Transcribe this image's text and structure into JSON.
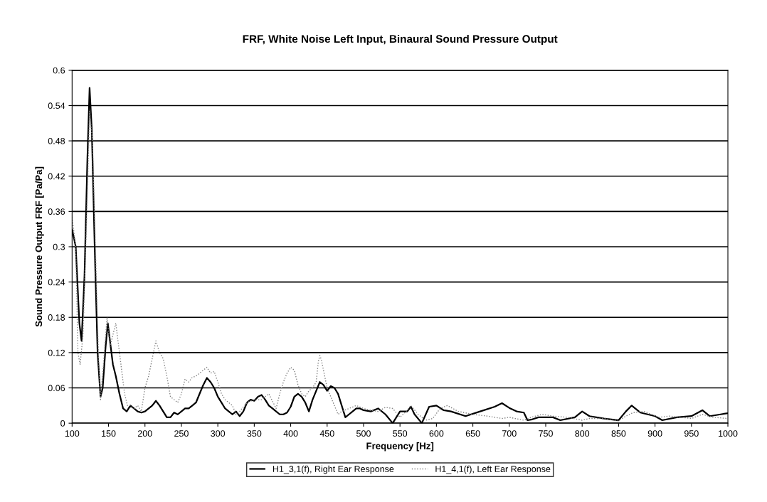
{
  "chart_data": {
    "type": "line",
    "title": "FRF, White Noise Left Input, Binaural Sound Pressure Output",
    "xlabel": "Frequency [Hz]",
    "ylabel": "Sound Pressure Output FRF [Pa/Pa]",
    "xlim": [
      100,
      1000
    ],
    "xticks": [
      100,
      150,
      200,
      250,
      300,
      350,
      400,
      450,
      500,
      550,
      600,
      650,
      700,
      750,
      800,
      850,
      900,
      950,
      1000
    ],
    "ylim": [
      0,
      0.6
    ],
    "yticks": [
      0,
      0.06,
      0.12,
      0.18,
      0.24,
      0.3,
      0.36,
      0.42,
      0.48,
      0.54,
      0.6
    ],
    "grid": "y",
    "legend": "bottom",
    "marker": "none",
    "series": [
      {
        "name": "H1_3,1(f), Right Ear Response",
        "color": "#000000",
        "line_style": "solid",
        "x": [
          100,
          105,
          110,
          113,
          117,
          121,
          124,
          127,
          131,
          135,
          139,
          142,
          146,
          149,
          152,
          156,
          160,
          165,
          170,
          175,
          180,
          185,
          190,
          195,
          200,
          210,
          215,
          220,
          225,
          230,
          235,
          240,
          245,
          250,
          255,
          260,
          265,
          270,
          275,
          280,
          285,
          290,
          295,
          300,
          305,
          310,
          315,
          320,
          325,
          330,
          335,
          340,
          345,
          350,
          355,
          360,
          365,
          370,
          375,
          380,
          385,
          390,
          395,
          400,
          405,
          410,
          415,
          420,
          425,
          430,
          435,
          440,
          445,
          450,
          455,
          460,
          465,
          470,
          475,
          480,
          485,
          490,
          495,
          500,
          510,
          520,
          530,
          540,
          550,
          560,
          565,
          570,
          580,
          590,
          600,
          610,
          620,
          640,
          660,
          680,
          690,
          700,
          710,
          720,
          725,
          730,
          740,
          760,
          770,
          790,
          800,
          810,
          830,
          850,
          860,
          868,
          880,
          900,
          910,
          930,
          950,
          965,
          975,
          990,
          1000
        ],
        "values": [
          0.33,
          0.3,
          0.17,
          0.14,
          0.25,
          0.45,
          0.57,
          0.5,
          0.3,
          0.12,
          0.045,
          0.06,
          0.13,
          0.17,
          0.14,
          0.1,
          0.08,
          0.05,
          0.025,
          0.02,
          0.03,
          0.025,
          0.02,
          0.018,
          0.02,
          0.03,
          0.038,
          0.03,
          0.02,
          0.01,
          0.01,
          0.018,
          0.015,
          0.02,
          0.025,
          0.025,
          0.03,
          0.035,
          0.05,
          0.065,
          0.077,
          0.07,
          0.06,
          0.045,
          0.035,
          0.025,
          0.02,
          0.015,
          0.02,
          0.012,
          0.02,
          0.035,
          0.04,
          0.038,
          0.045,
          0.048,
          0.04,
          0.03,
          0.025,
          0.02,
          0.015,
          0.015,
          0.018,
          0.028,
          0.045,
          0.05,
          0.045,
          0.035,
          0.02,
          0.04,
          0.055,
          0.07,
          0.065,
          0.055,
          0.063,
          0.06,
          0.05,
          0.03,
          0.01,
          0.015,
          0.02,
          0.025,
          0.025,
          0.022,
          0.02,
          0.025,
          0.015,
          0.0,
          0.02,
          0.02,
          0.028,
          0.015,
          0.0,
          0.028,
          0.03,
          0.022,
          0.02,
          0.012,
          0.02,
          0.028,
          0.034,
          0.026,
          0.02,
          0.018,
          0.005,
          0.006,
          0.01,
          0.01,
          0.005,
          0.01,
          0.02,
          0.012,
          0.008,
          0.005,
          0.02,
          0.03,
          0.018,
          0.012,
          0.005,
          0.01,
          0.012,
          0.022,
          0.012,
          0.015,
          0.017
        ]
      },
      {
        "name": "H1_4,1(f), Left Ear Response",
        "color": "#808080",
        "line_style": "dotted",
        "x": [
          100,
          105,
          108,
          111,
          115,
          120,
          124,
          128,
          132,
          136,
          139,
          143,
          148,
          152,
          156,
          160,
          164,
          168,
          172,
          176,
          180,
          185,
          190,
          195,
          200,
          205,
          210,
          215,
          220,
          225,
          230,
          235,
          240,
          245,
          250,
          255,
          260,
          265,
          270,
          275,
          280,
          285,
          290,
          295,
          300,
          305,
          310,
          320,
          325,
          330,
          340,
          350,
          360,
          370,
          380,
          385,
          390,
          395,
          400,
          405,
          410,
          415,
          420,
          425,
          430,
          435,
          438,
          440,
          442,
          445,
          450,
          455,
          460,
          465,
          470,
          480,
          490,
          500,
          510,
          520,
          530,
          540,
          550,
          560,
          565,
          575,
          585,
          595,
          605,
          615,
          630,
          650,
          670,
          690,
          700,
          720,
          730,
          745,
          760,
          780,
          800,
          810,
          830,
          850,
          860,
          870,
          885,
          895,
          905,
          920,
          935,
          950,
          965,
          980,
          1000
        ],
        "values": [
          0.35,
          0.3,
          0.12,
          0.1,
          0.15,
          0.35,
          0.53,
          0.48,
          0.3,
          0.12,
          0.04,
          0.1,
          0.18,
          0.13,
          0.15,
          0.17,
          0.13,
          0.09,
          0.05,
          0.03,
          0.03,
          0.025,
          0.03,
          0.02,
          0.06,
          0.08,
          0.11,
          0.14,
          0.12,
          0.11,
          0.08,
          0.045,
          0.04,
          0.035,
          0.05,
          0.075,
          0.07,
          0.078,
          0.08,
          0.085,
          0.09,
          0.095,
          0.085,
          0.088,
          0.07,
          0.05,
          0.04,
          0.03,
          0.015,
          0.02,
          0.035,
          0.04,
          0.04,
          0.05,
          0.025,
          0.05,
          0.07,
          0.085,
          0.095,
          0.09,
          0.065,
          0.05,
          0.045,
          0.055,
          0.06,
          0.07,
          0.105,
          0.115,
          0.108,
          0.09,
          0.06,
          0.045,
          0.03,
          0.015,
          0.02,
          0.025,
          0.03,
          0.025,
          0.022,
          0.02,
          0.027,
          0.025,
          0.01,
          0.022,
          0.03,
          0.015,
          0.005,
          0.008,
          0.025,
          0.03,
          0.02,
          0.015,
          0.012,
          0.008,
          0.01,
          0.005,
          0.01,
          0.015,
          0.012,
          0.01,
          0.005,
          0.008,
          0.008,
          0.004,
          0.012,
          0.018,
          0.02,
          0.015,
          0.01,
          0.012,
          0.01,
          0.008,
          0.015,
          0.01,
          0.008
        ]
      }
    ]
  }
}
